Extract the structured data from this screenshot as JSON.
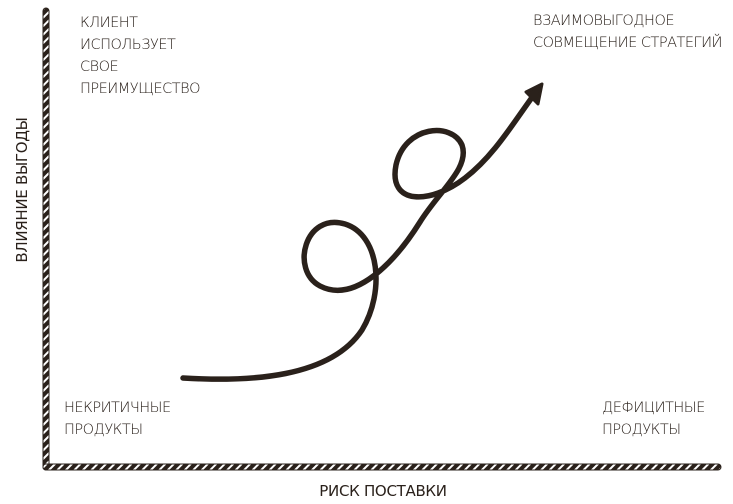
{
  "axes": {
    "y_label": "ВЛИЯНИЕ ВЫГОДЫ",
    "x_label": "РИСК ПОСТАВКИ"
  },
  "quadrants": {
    "top_left": [
      "КЛИЕНТ",
      "ИСПОЛЬЗУЕТ",
      "СВОЕ",
      "ПРЕИМУЩЕСТВО"
    ],
    "top_right": [
      "ВЗАИМОВЫГОДНОЕ",
      "СОВМЕЩЕНИЕ СТРАТЕГИЙ"
    ],
    "bottom_left": [
      "НЕКРИТИЧНЫЕ",
      "ПРОДУКТЫ"
    ],
    "bottom_right": [
      "ДЕФИЦИТНЫЕ",
      "ПРОДУКТЫ"
    ]
  },
  "colors": {
    "ink": "#2a211b",
    "background": "#ffffff"
  }
}
